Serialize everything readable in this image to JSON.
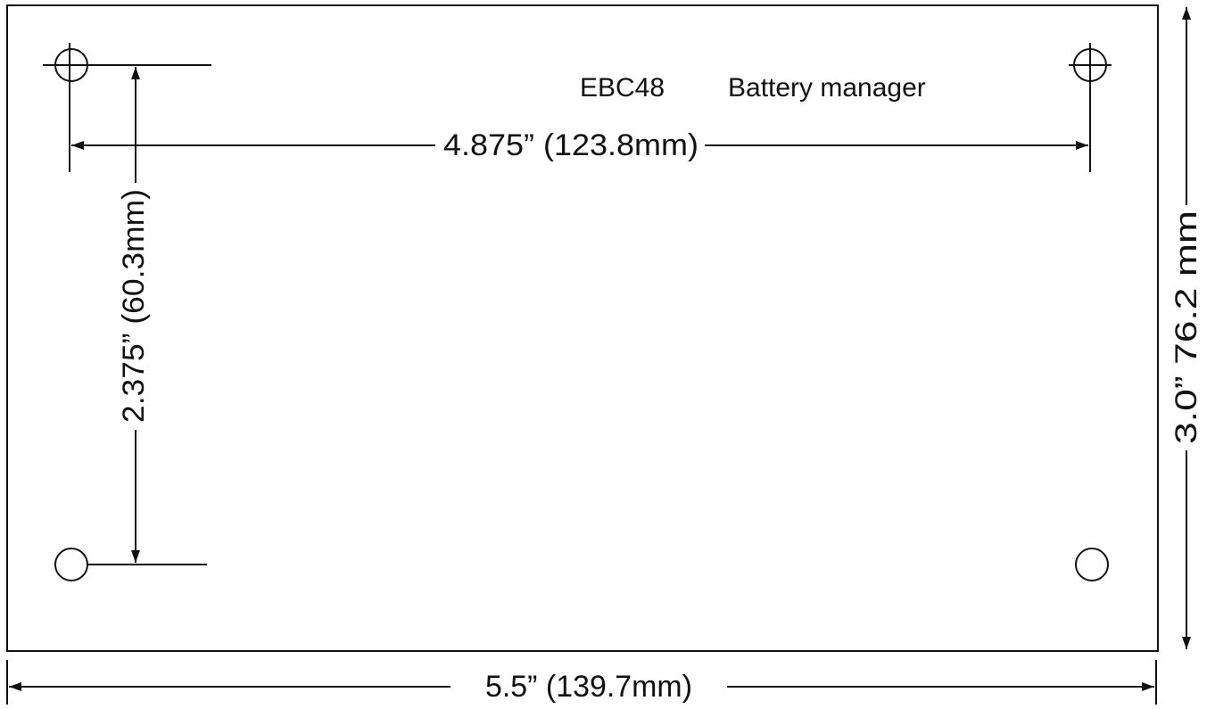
{
  "title": {
    "model": "EBC48",
    "description": "Battery manager"
  },
  "dimensions": {
    "hole_spacing_horizontal": "4.875” (123.8mm)",
    "hole_spacing_vertical": "2.375” (60.3mm)",
    "board_height": "3.0” 76.2 mm",
    "board_width": "5.5” (139.7mm)"
  }
}
